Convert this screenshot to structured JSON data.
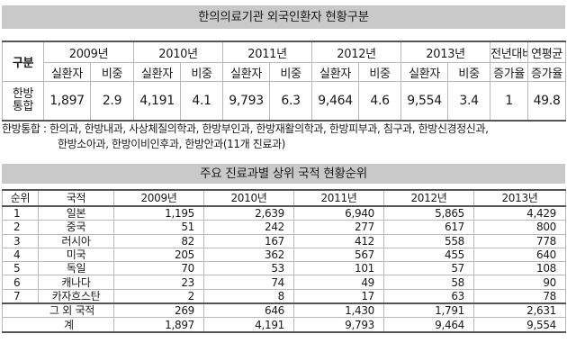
{
  "table1": {
    "title": "한의의료기관 외국인환자 현황구분",
    "corner": "구분",
    "years": [
      "2009년",
      "2010년",
      "2011년",
      "2012년",
      "2013년"
    ],
    "growth_header_1": "전년대비",
    "growth_header_2": "연평균",
    "sub_patients": "실환자",
    "sub_ratio": "비중",
    "growth_sub_1": "증가율",
    "growth_sub_2": "증가율",
    "row_label_1": "한방",
    "row_label_2": "통합",
    "values": [
      {
        "patients": "1,897",
        "ratio": "2.9"
      },
      {
        "patients": "4,191",
        "ratio": "4.1"
      },
      {
        "patients": "9,793",
        "ratio": "6.3"
      },
      {
        "patients": "9,464",
        "ratio": "4.6"
      },
      {
        "patients": "9,554",
        "ratio": "3.4"
      }
    ],
    "yoy": "1",
    "cagr": "49.8"
  },
  "note": {
    "line1": "한방통합 : 한의과, 한방내과, 사상체질의학과, 한방부인과, 한방재활의학과, 한방피부과, 침구과, 한방신경정신과,",
    "line2": "한방소아과, 한방이비인후과, 한방안과(11개 진료과)"
  },
  "table2": {
    "title": "주요 진료과별 상위 국적 현황순위",
    "headers": [
      "순위",
      "국적",
      "2009년",
      "2010년",
      "2011년",
      "2012년",
      "2013년"
    ],
    "rows": [
      {
        "rank": "1",
        "country": "일본",
        "v": [
          "1,195",
          "2,639",
          "6,940",
          "5,865",
          "4,429"
        ]
      },
      {
        "rank": "2",
        "country": "중국",
        "v": [
          "51",
          "242",
          "277",
          "617",
          "800"
        ]
      },
      {
        "rank": "3",
        "country": "러시아",
        "v": [
          "82",
          "167",
          "412",
          "558",
          "778"
        ]
      },
      {
        "rank": "4",
        "country": "미국",
        "v": [
          "205",
          "362",
          "567",
          "455",
          "640"
        ]
      },
      {
        "rank": "5",
        "country": "독일",
        "v": [
          "70",
          "53",
          "101",
          "57",
          "108"
        ]
      },
      {
        "rank": "6",
        "country": "캐나다",
        "v": [
          "23",
          "74",
          "49",
          "58",
          "90"
        ]
      },
      {
        "rank": "7",
        "country": "카자흐스탄",
        "v": [
          "2",
          "8",
          "17",
          "63",
          "78"
        ]
      }
    ],
    "others": {
      "label": "그 외 국적",
      "v": [
        "269",
        "646",
        "1,430",
        "1,791",
        "2,631"
      ]
    },
    "total": {
      "label": "계",
      "v": [
        "1,897",
        "4,191",
        "9,793",
        "9,464",
        "9,554"
      ]
    }
  }
}
